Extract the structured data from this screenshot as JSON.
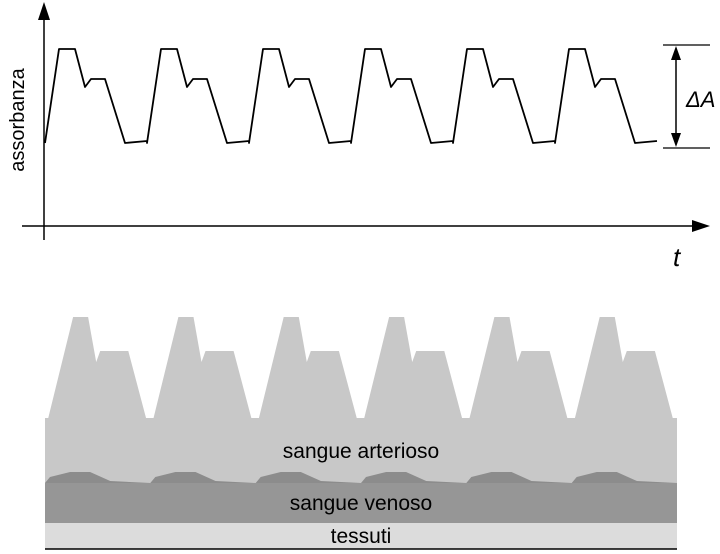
{
  "absorbance_plot": {
    "y_axis_label": "assorbanza",
    "x_axis_label": "t",
    "amplitude_label": "ΔA",
    "pulse_count": 6
  },
  "layers": {
    "pulse_count": 6,
    "items": [
      {
        "key": "arterial",
        "label": "sangue arterioso",
        "color": "#c8c8c8"
      },
      {
        "key": "venous",
        "label": "sangue venoso",
        "color": "#969696"
      },
      {
        "key": "tissue",
        "label": "tessuti",
        "color": "#dcdcdc"
      }
    ]
  },
  "colors": {
    "line": "#000000",
    "arterial_pulse": "#c8c8c8",
    "venous_bump": "#8c8c8c"
  }
}
